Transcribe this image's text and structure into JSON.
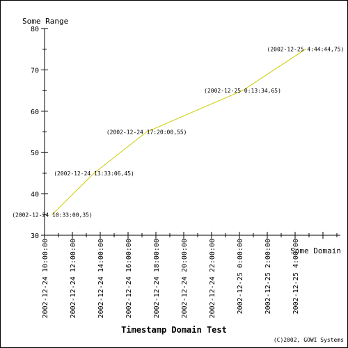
{
  "chart_data": {
    "type": "line",
    "title": "Timestamp Domain Test",
    "xlabel": "Some Domain",
    "ylabel": "Some Range",
    "footer": "(C)2002, GOWI Systems",
    "ylim": [
      30,
      80
    ],
    "yticks": [
      30,
      40,
      50,
      60,
      70,
      80
    ],
    "xlim": [
      "2002-12-24 10:00:00",
      "2002-12-25 6:00:00"
    ],
    "xticks": [
      "2002-12-24 10:00:00",
      "2002-12-24 12:00:00",
      "2002-12-24 14:00:00",
      "2002-12-24 16:00:00",
      "2002-12-24 18:00:00",
      "2002-12-24 20:00:00",
      "2002-12-24 22:00:00",
      "2002-12-25 0:00:00",
      "2002-12-25 2:00:00",
      "2002-12-25 4:00:00"
    ],
    "grid": false,
    "line_color": "#cccc00",
    "points": [
      {
        "x": "2002-12-24 10:33:00",
        "y": 35,
        "label": "(2002-12-24 10:33:00,35)"
      },
      {
        "x": "2002-12-24 13:33:06",
        "y": 45,
        "label": "(2002-12-24 13:33:06,45)"
      },
      {
        "x": "2002-12-24 17:20:00",
        "y": 55,
        "label": "(2002-12-24 17:20:00,55)"
      },
      {
        "x": "2002-12-25 0:13:34",
        "y": 65,
        "label": "(2002-12-25 0:13:34,65)"
      },
      {
        "x": "2002-12-25 4:44:44",
        "y": 75,
        "label": "(2002-12-25 4:44:44,75)"
      }
    ]
  }
}
